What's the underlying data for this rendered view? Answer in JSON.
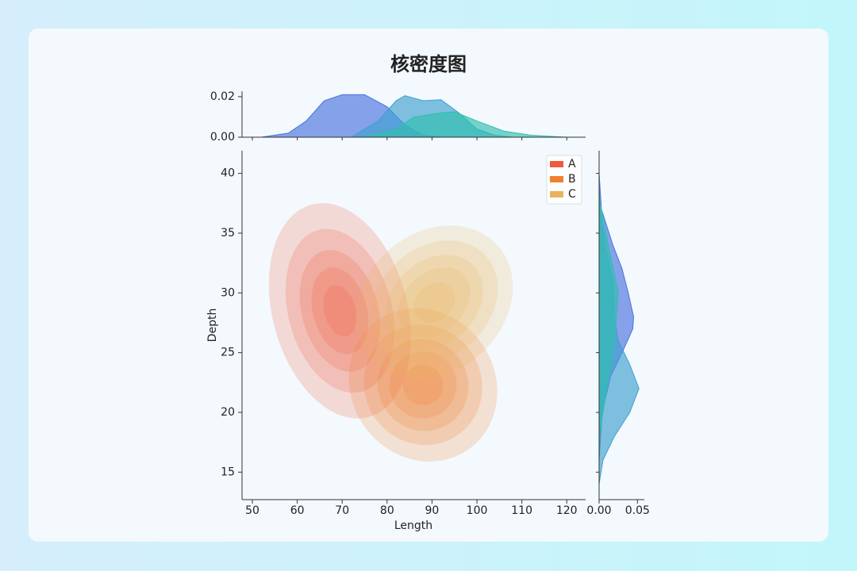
{
  "chart_data": {
    "type": "kde_joint",
    "title": "核密度图",
    "xlabel": "Length",
    "ylabel": "Depth",
    "xlim": [
      47.7,
      124.2
    ],
    "xticks": [
      50,
      60,
      70,
      80,
      90,
      100,
      110,
      120
    ],
    "ylim": [
      12.7,
      41.9
    ],
    "yticks": [
      15,
      20,
      25,
      30,
      35,
      40
    ],
    "top_ylim": [
      0,
      0.0227
    ],
    "top_yticks": [
      {
        "value": 0,
        "label": "0.00"
      },
      {
        "value": 0.02,
        "label": "0.02"
      }
    ],
    "right_xlim": [
      0,
      0.059
    ],
    "right_xticks": [
      {
        "value": 0,
        "label": "0.00"
      },
      {
        "value": 0.05,
        "label": "0.05"
      }
    ],
    "legend": "upper right",
    "series": [
      {
        "name": "A",
        "color": "#ee5a3d",
        "marginal_color": "#4a72e0",
        "center": [
          69.5,
          28.5
        ],
        "angle": -15,
        "levels": [
          [
            15,
            9.2
          ],
          [
            11.5,
            7
          ],
          [
            8.5,
            5.2
          ],
          [
            6,
            3.7
          ],
          [
            3.5,
            2.2
          ]
        ],
        "x_density": {
          "x": [
            52,
            58,
            62,
            66,
            70,
            75,
            80,
            84,
            88,
            92
          ],
          "values": [
            0,
            0.002,
            0.008,
            0.018,
            0.021,
            0.021,
            0.015,
            0.006,
            0.001,
            0
          ]
        },
        "y_density": {
          "y": [
            40,
            37,
            34,
            32,
            30,
            28,
            27,
            25,
            23,
            20,
            16
          ],
          "values": [
            0,
            0.003,
            0.018,
            0.03,
            0.038,
            0.045,
            0.044,
            0.03,
            0.015,
            0.004,
            0
          ]
        }
      },
      {
        "name": "B",
        "color": "#f07f2f",
        "marginal_color": "#3f9fd0",
        "center": [
          88,
          22.3
        ],
        "angle": -35,
        "levels": [
          [
            16,
            6.6
          ],
          [
            13,
            5.1
          ],
          [
            10,
            3.9
          ],
          [
            7.5,
            2.8
          ],
          [
            4.5,
            1.7
          ]
        ],
        "x_density": {
          "x": [
            72,
            78,
            82,
            84,
            88,
            92,
            96,
            100,
            104,
            108
          ],
          "values": [
            0,
            0.008,
            0.018,
            0.0205,
            0.018,
            0.0185,
            0.012,
            0.004,
            0.001,
            0
          ]
        },
        "y_density": {
          "y": [
            14,
            16,
            18,
            20,
            22,
            24,
            26,
            28,
            31,
            34,
            37,
            40
          ],
          "values": [
            0,
            0.005,
            0.02,
            0.04,
            0.052,
            0.04,
            0.025,
            0.02,
            0.018,
            0.008,
            0.001,
            0
          ]
        }
      },
      {
        "name": "C",
        "color": "#e9b25e",
        "marginal_color": "#2fbfae",
        "center": [
          90.5,
          29.2
        ],
        "angle": -42,
        "levels": [
          [
            19,
            5.8
          ],
          [
            15.5,
            4.6
          ],
          [
            12,
            3.5
          ],
          [
            9,
            2.5
          ],
          [
            5,
            1.5
          ]
        ],
        "x_density": {
          "x": [
            75,
            82,
            86,
            92,
            95,
            100,
            106,
            112,
            120
          ],
          "values": [
            0,
            0.004,
            0.01,
            0.012,
            0.0125,
            0.008,
            0.003,
            0.001,
            0
          ]
        },
        "y_density": {
          "y": [
            18,
            22,
            26,
            30,
            34,
            38
          ],
          "values": [
            0,
            0.01,
            0.02,
            0.025,
            0.012,
            0
          ]
        }
      }
    ]
  }
}
